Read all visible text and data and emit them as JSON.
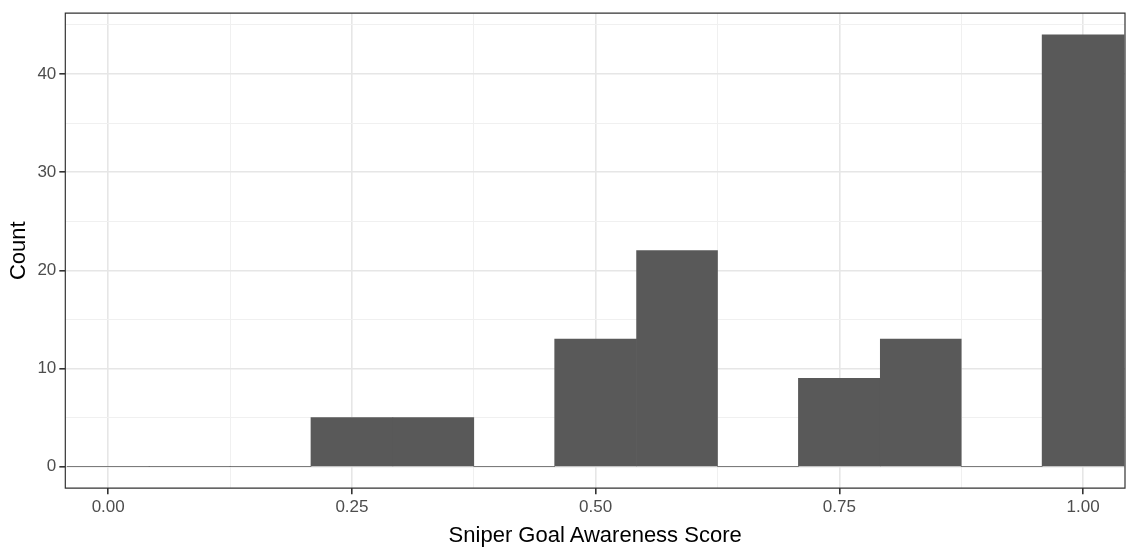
{
  "chart_data": {
    "type": "histogram",
    "xlabel": "Sniper Goal Awareness Score",
    "ylabel": "Count",
    "bins": [
      -0.042,
      0.042,
      0.125,
      0.208,
      0.292,
      0.375,
      0.458,
      0.542,
      0.625,
      0.708,
      0.792,
      0.875,
      0.958,
      1.042
    ],
    "values": [
      0,
      0,
      0,
      5,
      5,
      0,
      13,
      22,
      0,
      9,
      13,
      0,
      44
    ],
    "color": "#595959",
    "xlim": [
      -0.044,
      1.043
    ],
    "xticks": [
      {
        "value": 0,
        "label": "0.00"
      },
      {
        "value": 0.125,
        "label": null
      },
      {
        "value": 0.25,
        "label": "0.25"
      },
      {
        "value": 0.375,
        "label": null
      },
      {
        "value": 0.5,
        "label": "0.50"
      },
      {
        "value": 0.625,
        "label": null
      },
      {
        "value": 0.75,
        "label": "0.75"
      },
      {
        "value": 0.875,
        "label": null
      },
      {
        "value": 1,
        "label": "1.00"
      }
    ],
    "ylim": [
      -2.2,
      46.2
    ],
    "yticks": [
      0,
      {
        "value": 5,
        "label": null
      },
      10,
      {
        "value": 15,
        "label": null
      },
      20,
      {
        "value": 25,
        "label": null
      },
      30,
      {
        "value": 35,
        "label": null
      },
      40,
      {
        "value": 45,
        "label": null
      }
    ],
    "grid": true
  }
}
